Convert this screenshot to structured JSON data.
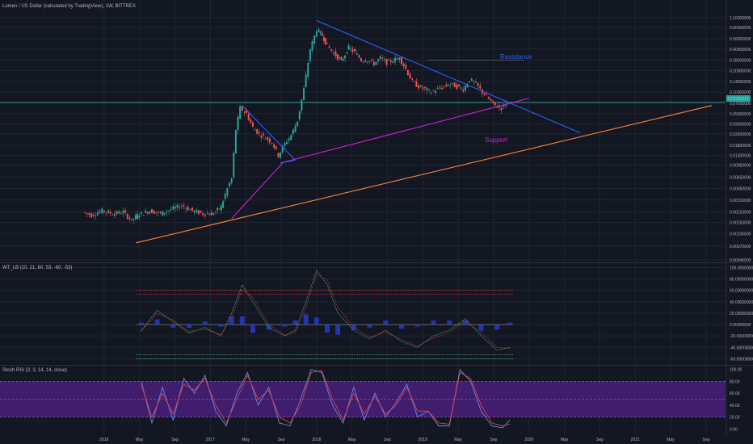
{
  "colors": {
    "background": "#131722",
    "grid": "#1f2433",
    "axis_text": "#b2b5be",
    "candle_up": "#26a69a",
    "candle_down": "#ef5350",
    "resistance": "#2962ff",
    "support": "#d020d0",
    "trend": "#ff7f3f",
    "price_tag": "#26a69a",
    "wt1": "#3cb371",
    "wt2": "#c03030",
    "wt_hist": "#2b3bd6",
    "stoch_k": "#5a8cf0",
    "stoch_d": "#e04040",
    "stoch_band": "#4a1e7a"
  },
  "panels": {
    "price": {
      "title": "Lumen / US Dollar (calculated by TradingView), 1W, BITTREX"
    },
    "wt": {
      "title": "WT_LB (10, 21, 60, 53, -60, -53)"
    },
    "stoch": {
      "title": "Stoch RSI (3, 3, 14, 14, close)"
    }
  },
  "annotations": {
    "resistance": "Resistance",
    "support": "Support"
  },
  "price_tag": "0.07192112",
  "chart_data": [
    {
      "type": "candlestick",
      "title": "Lumen / US Dollar (calculated by TradingView), 1W, BITTREX",
      "scale": "log",
      "y_ticks": [
        "1.10000000",
        "0.80000000",
        "0.56000000",
        "0.40000000",
        "0.28000000",
        "0.20000000",
        "0.14000000",
        "0.10000000",
        "0.07000000",
        "0.05000000",
        "0.03600000",
        "0.02600000",
        "0.01800000",
        "0.01300000",
        "0.00950000",
        "0.00650000",
        "0.00450000",
        "0.00310000",
        "0.00210000",
        "0.00150000",
        "0.00105000",
        "0.00070000",
        "0.00045000"
      ],
      "x_ticks": [
        "2016",
        "May",
        "Sep",
        "2017",
        "May",
        "Sep",
        "2018",
        "May",
        "Sep",
        "2019",
        "May",
        "Sep",
        "2020",
        "May",
        "Sep",
        "2021",
        "May",
        "Sep"
      ],
      "x_tick_dates": [
        2016.0,
        2016.333,
        2016.667,
        2017.0,
        2017.333,
        2017.667,
        2018.0,
        2018.333,
        2018.667,
        2019.0,
        2019.333,
        2019.667,
        2020.0,
        2020.333,
        2020.667,
        2021.0,
        2021.333,
        2021.667
      ],
      "x_range": [
        2015.02,
        2021.85
      ],
      "y_range": [
        0.00045,
        1.35
      ],
      "last_price": 0.07192112,
      "horizontal_levels": [
        0.07192112,
        0.28
      ],
      "price_path": [
        [
          2015.82,
          0.0021
        ],
        [
          2015.9,
          0.0019
        ],
        [
          2016.0,
          0.0022
        ],
        [
          2016.1,
          0.002
        ],
        [
          2016.2,
          0.0021
        ],
        [
          2016.28,
          0.0016
        ],
        [
          2016.33,
          0.0019
        ],
        [
          2016.45,
          0.0022
        ],
        [
          2016.55,
          0.002
        ],
        [
          2016.65,
          0.0023
        ],
        [
          2016.75,
          0.0026
        ],
        [
          2016.85,
          0.0022
        ],
        [
          2016.95,
          0.002
        ],
        [
          2017.05,
          0.002
        ],
        [
          2017.12,
          0.0025
        ],
        [
          2017.18,
          0.0045
        ],
        [
          2017.22,
          0.0062
        ],
        [
          2017.26,
          0.03
        ],
        [
          2017.3,
          0.06
        ],
        [
          2017.36,
          0.05
        ],
        [
          2017.42,
          0.032
        ],
        [
          2017.48,
          0.026
        ],
        [
          2017.54,
          0.023
        ],
        [
          2017.6,
          0.02
        ],
        [
          2017.66,
          0.013
        ],
        [
          2017.72,
          0.019
        ],
        [
          2017.78,
          0.025
        ],
        [
          2017.84,
          0.04
        ],
        [
          2017.9,
          0.11
        ],
        [
          2017.96,
          0.4
        ],
        [
          2018.02,
          0.75
        ],
        [
          2018.07,
          0.62
        ],
        [
          2018.12,
          0.45
        ],
        [
          2018.18,
          0.35
        ],
        [
          2018.25,
          0.27
        ],
        [
          2018.32,
          0.42
        ],
        [
          2018.38,
          0.36
        ],
        [
          2018.44,
          0.28
        ],
        [
          2018.5,
          0.28
        ],
        [
          2018.56,
          0.25
        ],
        [
          2018.62,
          0.3
        ],
        [
          2018.68,
          0.26
        ],
        [
          2018.74,
          0.28
        ],
        [
          2018.8,
          0.3
        ],
        [
          2018.86,
          0.21
        ],
        [
          2018.92,
          0.14
        ],
        [
          2018.98,
          0.12
        ],
        [
          2019.04,
          0.11
        ],
        [
          2019.1,
          0.1
        ],
        [
          2019.16,
          0.11
        ],
        [
          2019.22,
          0.12
        ],
        [
          2019.28,
          0.13
        ],
        [
          2019.34,
          0.12
        ],
        [
          2019.4,
          0.11
        ],
        [
          2019.46,
          0.15
        ],
        [
          2019.52,
          0.13
        ],
        [
          2019.58,
          0.1
        ],
        [
          2019.64,
          0.08
        ],
        [
          2019.7,
          0.065
        ],
        [
          2019.76,
          0.06
        ],
        [
          2019.82,
          0.072
        ]
      ],
      "lines": [
        {
          "label": "Resistance",
          "points": [
            [
              2018.0,
              1.0
            ],
            [
              2020.48,
              0.027
            ]
          ]
        },
        {
          "label": "Support",
          "points": [
            [
              2017.66,
              0.0102
            ],
            [
              2020.0,
              0.082
            ]
          ]
        },
        {
          "label": "",
          "points": [
            [
              2016.3,
              0.00078
            ],
            [
              2021.72,
              0.065
            ]
          ]
        },
        {
          "label": "",
          "points": [
            [
              2017.2,
              0.0017
            ],
            [
              2017.68,
              0.0102
            ]
          ]
        },
        {
          "label": "",
          "points": [
            [
              2017.3,
              0.065
            ],
            [
              2017.8,
              0.0112
            ]
          ]
        },
        {
          "label": "",
          "points": [
            [
              2017.66,
              0.0102
            ],
            [
              2017.8,
              0.0112
            ]
          ]
        }
      ]
    },
    {
      "type": "line",
      "title": "WT_LB (10, 21, 60, 53, -60, -53)",
      "y_ticks": [
        100,
        80,
        60,
        40,
        20,
        0,
        -20,
        -40,
        -60
      ],
      "y_tick_labels": [
        "100.00000000",
        "80.00000000",
        "60.00000000",
        "40.00000000",
        "20.00000000",
        "0.00000000",
        "-20.00000000",
        "-40.00000000",
        "-60.00000000"
      ],
      "y_range": [
        -68,
        105
      ],
      "levels": [
        60,
        53,
        0,
        -53,
        -60
      ],
      "series": [
        {
          "name": "",
          "x": [
            2016.35,
            2016.5,
            2016.65,
            2016.8,
            2016.95,
            2017.1,
            2017.2,
            2017.3,
            2017.4,
            2017.55,
            2017.7,
            2017.8,
            2017.9,
            2018.0,
            2018.1,
            2018.2,
            2018.35,
            2018.5,
            2018.65,
            2018.8,
            2018.95,
            2019.1,
            2019.25,
            2019.4,
            2019.55,
            2019.7,
            2019.82
          ],
          "values": [
            -10,
            25,
            5,
            -15,
            -5,
            -20,
            20,
            70,
            40,
            -5,
            -20,
            -10,
            40,
            95,
            70,
            20,
            -10,
            -25,
            -10,
            -30,
            -40,
            -20,
            -10,
            10,
            -20,
            -45,
            -40
          ]
        },
        {
          "name": "",
          "x": [
            2016.35,
            2016.5,
            2016.65,
            2016.8,
            2016.95,
            2017.1,
            2017.2,
            2017.3,
            2017.4,
            2017.55,
            2017.7,
            2017.8,
            2017.9,
            2018.0,
            2018.1,
            2018.2,
            2018.35,
            2018.5,
            2018.65,
            2018.8,
            2018.95,
            2019.1,
            2019.25,
            2019.4,
            2019.55,
            2019.7,
            2019.82
          ],
          "values": [
            -12,
            20,
            8,
            -12,
            -8,
            -18,
            12,
            62,
            48,
            0,
            -18,
            -14,
            30,
            88,
            78,
            30,
            -5,
            -22,
            -14,
            -26,
            -38,
            -24,
            -14,
            6,
            -14,
            -40,
            -42
          ]
        }
      ]
    },
    {
      "type": "line",
      "title": "Stoch RSI (3, 3, 14, 14, close)",
      "y_ticks": [
        100,
        80,
        60,
        40,
        20,
        0
      ],
      "y_tick_labels": [
        "100.00",
        "80.00",
        "60.00",
        "40.00",
        "20.00",
        "0.00"
      ],
      "y_range": [
        -5,
        105
      ],
      "band": [
        20,
        80
      ],
      "series": [
        {
          "name": "",
          "x": [
            2016.35,
            2016.45,
            2016.55,
            2016.65,
            2016.75,
            2016.85,
            2016.95,
            2017.05,
            2017.15,
            2017.25,
            2017.35,
            2017.45,
            2017.55,
            2017.65,
            2017.75,
            2017.85,
            2017.95,
            2018.05,
            2018.15,
            2018.25,
            2018.35,
            2018.45,
            2018.55,
            2018.65,
            2018.75,
            2018.85,
            2018.95,
            2019.05,
            2019.15,
            2019.25,
            2019.35,
            2019.45,
            2019.55,
            2019.65,
            2019.75,
            2019.82
          ],
          "values": [
            80,
            10,
            70,
            15,
            85,
            60,
            90,
            30,
            5,
            60,
            95,
            40,
            70,
            10,
            5,
            50,
            100,
            95,
            40,
            10,
            70,
            15,
            60,
            20,
            45,
            75,
            20,
            30,
            5,
            5,
            100,
            80,
            30,
            5,
            2,
            15
          ]
        },
        {
          "name": "",
          "x": [
            2016.35,
            2016.45,
            2016.55,
            2016.65,
            2016.75,
            2016.85,
            2016.95,
            2017.05,
            2017.15,
            2017.25,
            2017.35,
            2017.45,
            2017.55,
            2017.65,
            2017.75,
            2017.85,
            2017.95,
            2018.05,
            2018.15,
            2018.25,
            2018.35,
            2018.45,
            2018.55,
            2018.65,
            2018.75,
            2018.85,
            2018.95,
            2019.05,
            2019.15,
            2019.25,
            2019.35,
            2019.45,
            2019.55,
            2019.65,
            2019.75,
            2019.82
          ],
          "values": [
            75,
            20,
            60,
            25,
            75,
            65,
            85,
            40,
            10,
            50,
            90,
            50,
            65,
            20,
            10,
            40,
            95,
            98,
            50,
            15,
            60,
            25,
            55,
            25,
            40,
            70,
            30,
            30,
            10,
            8,
            95,
            85,
            40,
            10,
            5,
            8
          ]
        }
      ]
    }
  ]
}
